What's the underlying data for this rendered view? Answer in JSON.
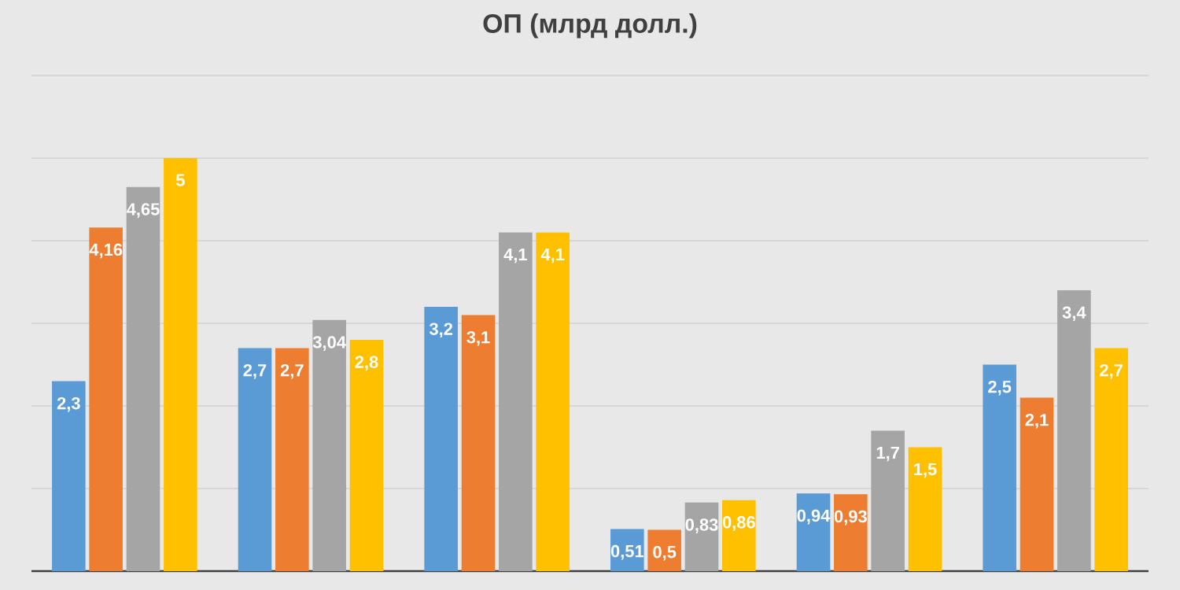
{
  "chart_data": {
    "type": "bar",
    "title": "ОП (млрд долл.)",
    "categories": [
      null,
      null,
      null,
      null,
      null,
      null
    ],
    "series": [
      {
        "color": "#5b9bd5",
        "values": [
          2.3,
          2.7,
          3.2,
          0.51,
          0.94,
          2.5
        ],
        "value_labels": [
          "2,3",
          "2,7",
          "3,2",
          "0,51",
          "0,94",
          "2,5"
        ]
      },
      {
        "color": "#ed7d31",
        "values": [
          4.16,
          2.7,
          3.1,
          0.5,
          0.93,
          2.1
        ],
        "value_labels": [
          "4,16",
          "2,7",
          "3,1",
          "0,5",
          "0,93",
          "2,1"
        ]
      },
      {
        "color": "#a5a5a5",
        "values": [
          4.65,
          3.04,
          4.1,
          0.83,
          1.7,
          3.4
        ],
        "value_labels": [
          "4,65",
          "3,04",
          "4,1",
          "0,83",
          "1,7",
          "3,4"
        ]
      },
      {
        "color": "#ffc000",
        "values": [
          5,
          2.8,
          4.1,
          0.86,
          1.5,
          2.7
        ],
        "value_labels": [
          "5",
          "2,8",
          "4,1",
          "0,86",
          "1,5",
          "2,7"
        ]
      }
    ],
    "ylim": [
      0,
      6
    ],
    "yticks": [
      {
        "value": 1,
        "label": null
      },
      {
        "value": 2,
        "label": null
      },
      {
        "value": 3,
        "label": null
      },
      {
        "value": 4,
        "label": null
      },
      {
        "value": 5,
        "label": null
      },
      {
        "value": 6,
        "label": null
      }
    ],
    "grid": "y"
  }
}
